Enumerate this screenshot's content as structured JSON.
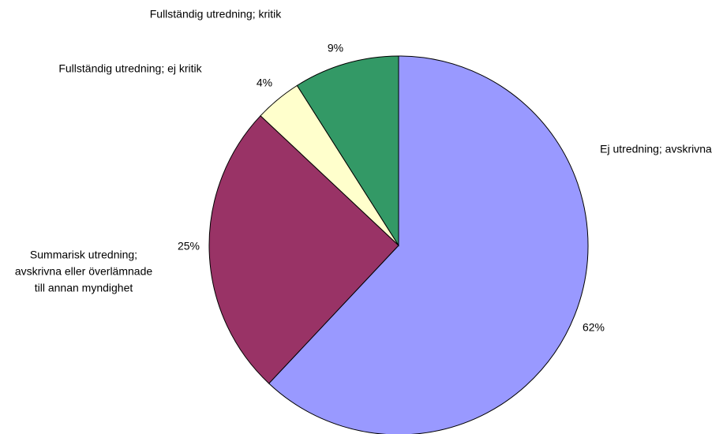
{
  "chart_data": {
    "type": "pie",
    "categories": [
      "Ej utredning; avskrivna",
      "Summarisk utredning; avskrivna eller överlämnade till annan myndighet",
      "Fullständig utredning; ej kritik",
      "Fullständig utredning; kritik"
    ],
    "values": [
      62,
      25,
      4,
      9
    ],
    "value_labels": [
      "62%",
      "25%",
      "4%",
      "9%"
    ],
    "category_labels": [
      [
        "Ej utredning; avskrivna"
      ],
      [
        "Summarisk utredning;",
        "avskrivna eller överlämnade",
        "till annan myndighet"
      ],
      [
        "Fullständig utredning; ej kritik"
      ],
      [
        "Fullständig utredning; kritik"
      ]
    ],
    "colors": [
      "#9999ff",
      "#993366",
      "#ffffcc",
      "#339966"
    ],
    "start": "12 o'clock",
    "direction": "clockwise",
    "legend": "none"
  }
}
